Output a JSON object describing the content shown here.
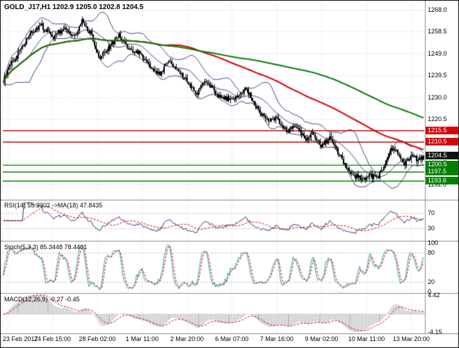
{
  "header": {
    "title_line": "GOLD_J17,H1 1202.9 1205.0 1202.8 1204.5"
  },
  "chart_data": {
    "type": "candlestick",
    "symbol": "GOLD_J17",
    "timeframe": "H1",
    "ohlc_display": {
      "open": 1202.9,
      "high": 1205.0,
      "low": 1202.8,
      "close": 1204.5
    },
    "price_range": {
      "max": 1271.0,
      "min": 1185.5
    },
    "price_axis_ticks": [
      "1268.0",
      "1258.5",
      "1249.0",
      "1239.5",
      "1230.0",
      "1220.5",
      "1211.0",
      "1201.5",
      "1192.0"
    ],
    "x_ticks": [
      "23 Feb 2017",
      "24 Feb 15:00",
      "28 Feb 02:00",
      "1 Mar 11:00",
      "2 Mar 20:00",
      "6 Mar 07:00",
      "7 Mar 16:00",
      "9 Mar 02:00",
      "10 Mar 11:00",
      "13 Mar 20:00"
    ],
    "x_tick_bars": [
      3,
      36,
      69,
      102,
      135,
      168,
      201,
      234,
      267,
      300
    ],
    "bars_count": 310,
    "price_path_waypoints": [
      [
        0,
        1237
      ],
      [
        5,
        1244
      ],
      [
        12,
        1250
      ],
      [
        20,
        1258
      ],
      [
        28,
        1261
      ],
      [
        36,
        1256
      ],
      [
        45,
        1260
      ],
      [
        52,
        1256
      ],
      [
        58,
        1263
      ],
      [
        64,
        1258
      ],
      [
        70,
        1247
      ],
      [
        78,
        1252
      ],
      [
        85,
        1257
      ],
      [
        92,
        1251
      ],
      [
        100,
        1249
      ],
      [
        108,
        1244
      ],
      [
        115,
        1240
      ],
      [
        122,
        1246
      ],
      [
        128,
        1242
      ],
      [
        135,
        1237
      ],
      [
        142,
        1232
      ],
      [
        150,
        1237
      ],
      [
        158,
        1230
      ],
      [
        168,
        1229
      ],
      [
        178,
        1234
      ],
      [
        188,
        1224
      ],
      [
        196,
        1220
      ],
      [
        201,
        1221
      ],
      [
        208,
        1215
      ],
      [
        215,
        1218
      ],
      [
        222,
        1212
      ],
      [
        228,
        1214
      ],
      [
        234,
        1209
      ],
      [
        240,
        1212
      ],
      [
        246,
        1206
      ],
      [
        252,
        1200
      ],
      [
        258,
        1196
      ],
      [
        264,
        1194.5
      ],
      [
        270,
        1196
      ],
      [
        275,
        1194.5
      ],
      [
        280,
        1200
      ],
      [
        285,
        1208
      ],
      [
        290,
        1206
      ],
      [
        295,
        1201
      ],
      [
        300,
        1204
      ],
      [
        305,
        1203
      ],
      [
        309,
        1204.5
      ]
    ],
    "horizontal_lines": [
      {
        "price": 1215.5,
        "color": "#d60404"
      },
      {
        "price": 1210.5,
        "color": "#d60404"
      },
      {
        "price": 1200.5,
        "color": "#038003"
      },
      {
        "price": 1197.5,
        "color": "#038003"
      },
      {
        "price": 1193.6,
        "color": "#038003"
      }
    ],
    "current_price": {
      "value": 1204.5,
      "color": "#111111"
    },
    "overlays": {
      "bollinger": {
        "period": 20,
        "deviation": 2
      },
      "ma_fast": {
        "period": 120
      },
      "ma_slow": {
        "period": 220
      }
    },
    "indicators": [
      {
        "id": "rsi",
        "label": "RSI(14) 55.3302  ->MA(18) 47.8435",
        "levels": [
          70,
          30
        ],
        "axis_values": [
          70,
          30
        ]
      },
      {
        "id": "stoch",
        "label": "Stoch(5,3,3) 85.3448 78.4401",
        "levels": [
          80,
          20
        ],
        "axis_values": [
          100,
          80,
          20,
          0
        ]
      },
      {
        "id": "macd",
        "label": "MACD(12,26,9) -0.27 -0.45",
        "axis_values": [
          4.42,
          -4.15
        ],
        "range": {
          "max": 4.42,
          "min": -4.15
        }
      }
    ]
  },
  "colors": {
    "background": "#ffffff",
    "grid": "#d6d6d6",
    "level": "#bdbdbd",
    "separator": "#8a8a8a",
    "border": "#000000",
    "candle": "#000000",
    "bollinger": "#3d3d7a",
    "ma_fast": "#d40000",
    "ma_slow": "#0a7a0a",
    "rsi": "#2f2f80",
    "rsi_signal": "#d40000",
    "stoch": "#1fa8a8",
    "stoch_signal": "#d40000",
    "macd_hist": "#b4b4b4",
    "macd_signal": "#d40000",
    "axis_text": "#000000"
  }
}
